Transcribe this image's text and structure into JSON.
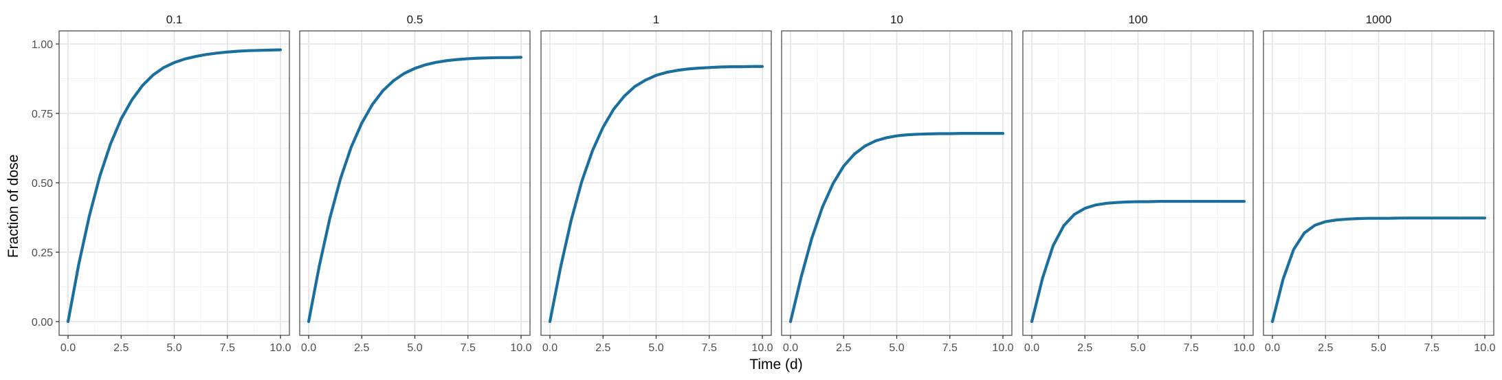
{
  "chart_data": {
    "type": "line",
    "facet_titles": [
      "0.1",
      "0.5",
      "1",
      "10",
      "100",
      "1000"
    ],
    "xlabel": "Time (d)",
    "ylabel": "Fraction of dose",
    "xlim": [
      0,
      10
    ],
    "ylim": [
      0,
      1
    ],
    "x_ticks": [
      0,
      2.5,
      5,
      7.5,
      10
    ],
    "x_tick_labels": [
      "0.0",
      "2.5",
      "5.0",
      "7.5",
      "10.0"
    ],
    "y_ticks": [
      0,
      0.25,
      0.5,
      0.75,
      1
    ],
    "y_tick_labels": [
      "0.00",
      "0.25",
      "0.50",
      "0.75",
      "1.00"
    ],
    "grid": true,
    "line_color": "#1b6f9f",
    "x": [
      0,
      0.5,
      1,
      1.5,
      2,
      2.5,
      3,
      3.5,
      4,
      4.5,
      5,
      5.5,
      6,
      6.5,
      7,
      7.5,
      8,
      8.5,
      9,
      9.5,
      10
    ],
    "series": [
      {
        "values": [
          0.0,
          0.205,
          0.38,
          0.525,
          0.64,
          0.73,
          0.798,
          0.85,
          0.888,
          0.915,
          0.933,
          0.946,
          0.955,
          0.962,
          0.967,
          0.971,
          0.974,
          0.976,
          0.977,
          0.978,
          0.979
        ]
      },
      {
        "values": [
          0.0,
          0.2,
          0.373,
          0.515,
          0.628,
          0.715,
          0.782,
          0.832,
          0.868,
          0.894,
          0.912,
          0.925,
          0.934,
          0.94,
          0.944,
          0.947,
          0.949,
          0.95,
          0.951,
          0.951,
          0.952
        ]
      },
      {
        "values": [
          0.0,
          0.195,
          0.365,
          0.505,
          0.615,
          0.7,
          0.765,
          0.812,
          0.847,
          0.87,
          0.887,
          0.898,
          0.905,
          0.91,
          0.913,
          0.915,
          0.917,
          0.918,
          0.918,
          0.919,
          0.919
        ]
      },
      {
        "values": [
          0.0,
          0.16,
          0.3,
          0.412,
          0.497,
          0.56,
          0.603,
          0.632,
          0.651,
          0.662,
          0.669,
          0.673,
          0.675,
          0.676,
          0.677,
          0.677,
          0.678,
          0.678,
          0.678,
          0.678,
          0.678
        ]
      },
      {
        "values": [
          0.0,
          0.155,
          0.273,
          0.345,
          0.386,
          0.408,
          0.42,
          0.426,
          0.429,
          0.431,
          0.432,
          0.432,
          0.433,
          0.433,
          0.433,
          0.433,
          0.433,
          0.433,
          0.433,
          0.433,
          0.433
        ]
      },
      {
        "values": [
          0.0,
          0.152,
          0.26,
          0.319,
          0.347,
          0.36,
          0.366,
          0.369,
          0.371,
          0.372,
          0.372,
          0.372,
          0.373,
          0.373,
          0.373,
          0.373,
          0.373,
          0.373,
          0.373,
          0.373,
          0.373
        ]
      }
    ]
  }
}
